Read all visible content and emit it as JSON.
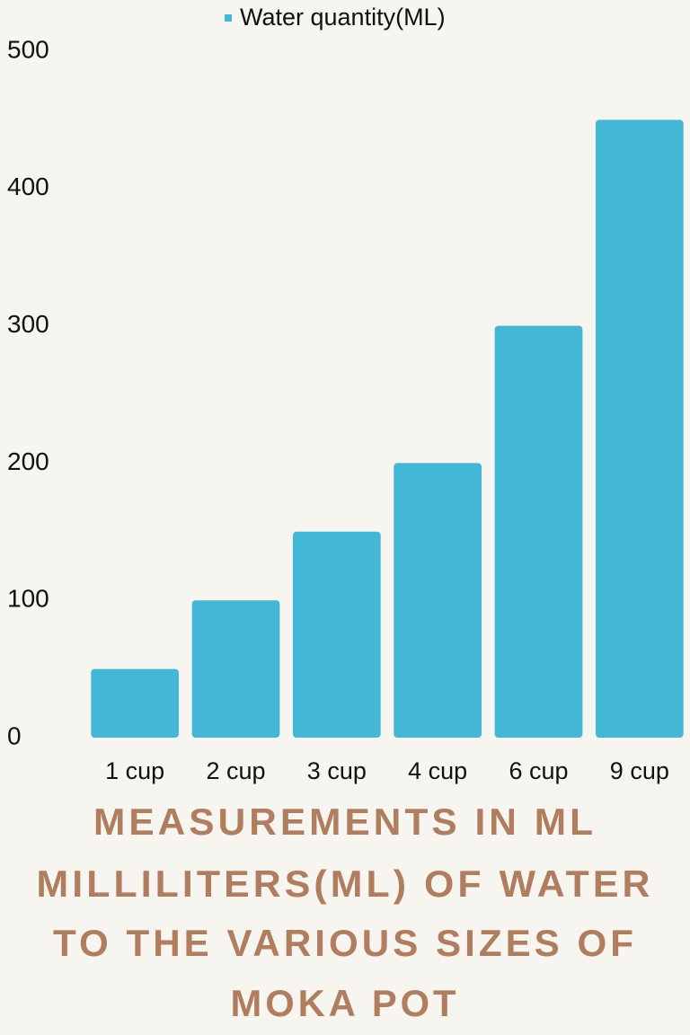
{
  "chart_data": {
    "type": "bar",
    "title": [
      "MEASUREMENTS IN ML",
      "MILLILITERS(ML) OF WATER",
      "TO THE VARIOUS SIZES OF",
      "MOKA POT"
    ],
    "categories": [
      "1 cup",
      "2 cup",
      "3 cup",
      "4 cup",
      "6 cup",
      "9 cup"
    ],
    "series": [
      {
        "name": "Water quantity(ML)",
        "color": "#42b7d6",
        "values": [
          50,
          100,
          150,
          200,
          300,
          450
        ]
      }
    ],
    "ylim": [
      0,
      500
    ],
    "yticks": [
      0,
      100,
      200,
      300,
      400,
      500
    ],
    "grid": false,
    "legend": "top"
  }
}
